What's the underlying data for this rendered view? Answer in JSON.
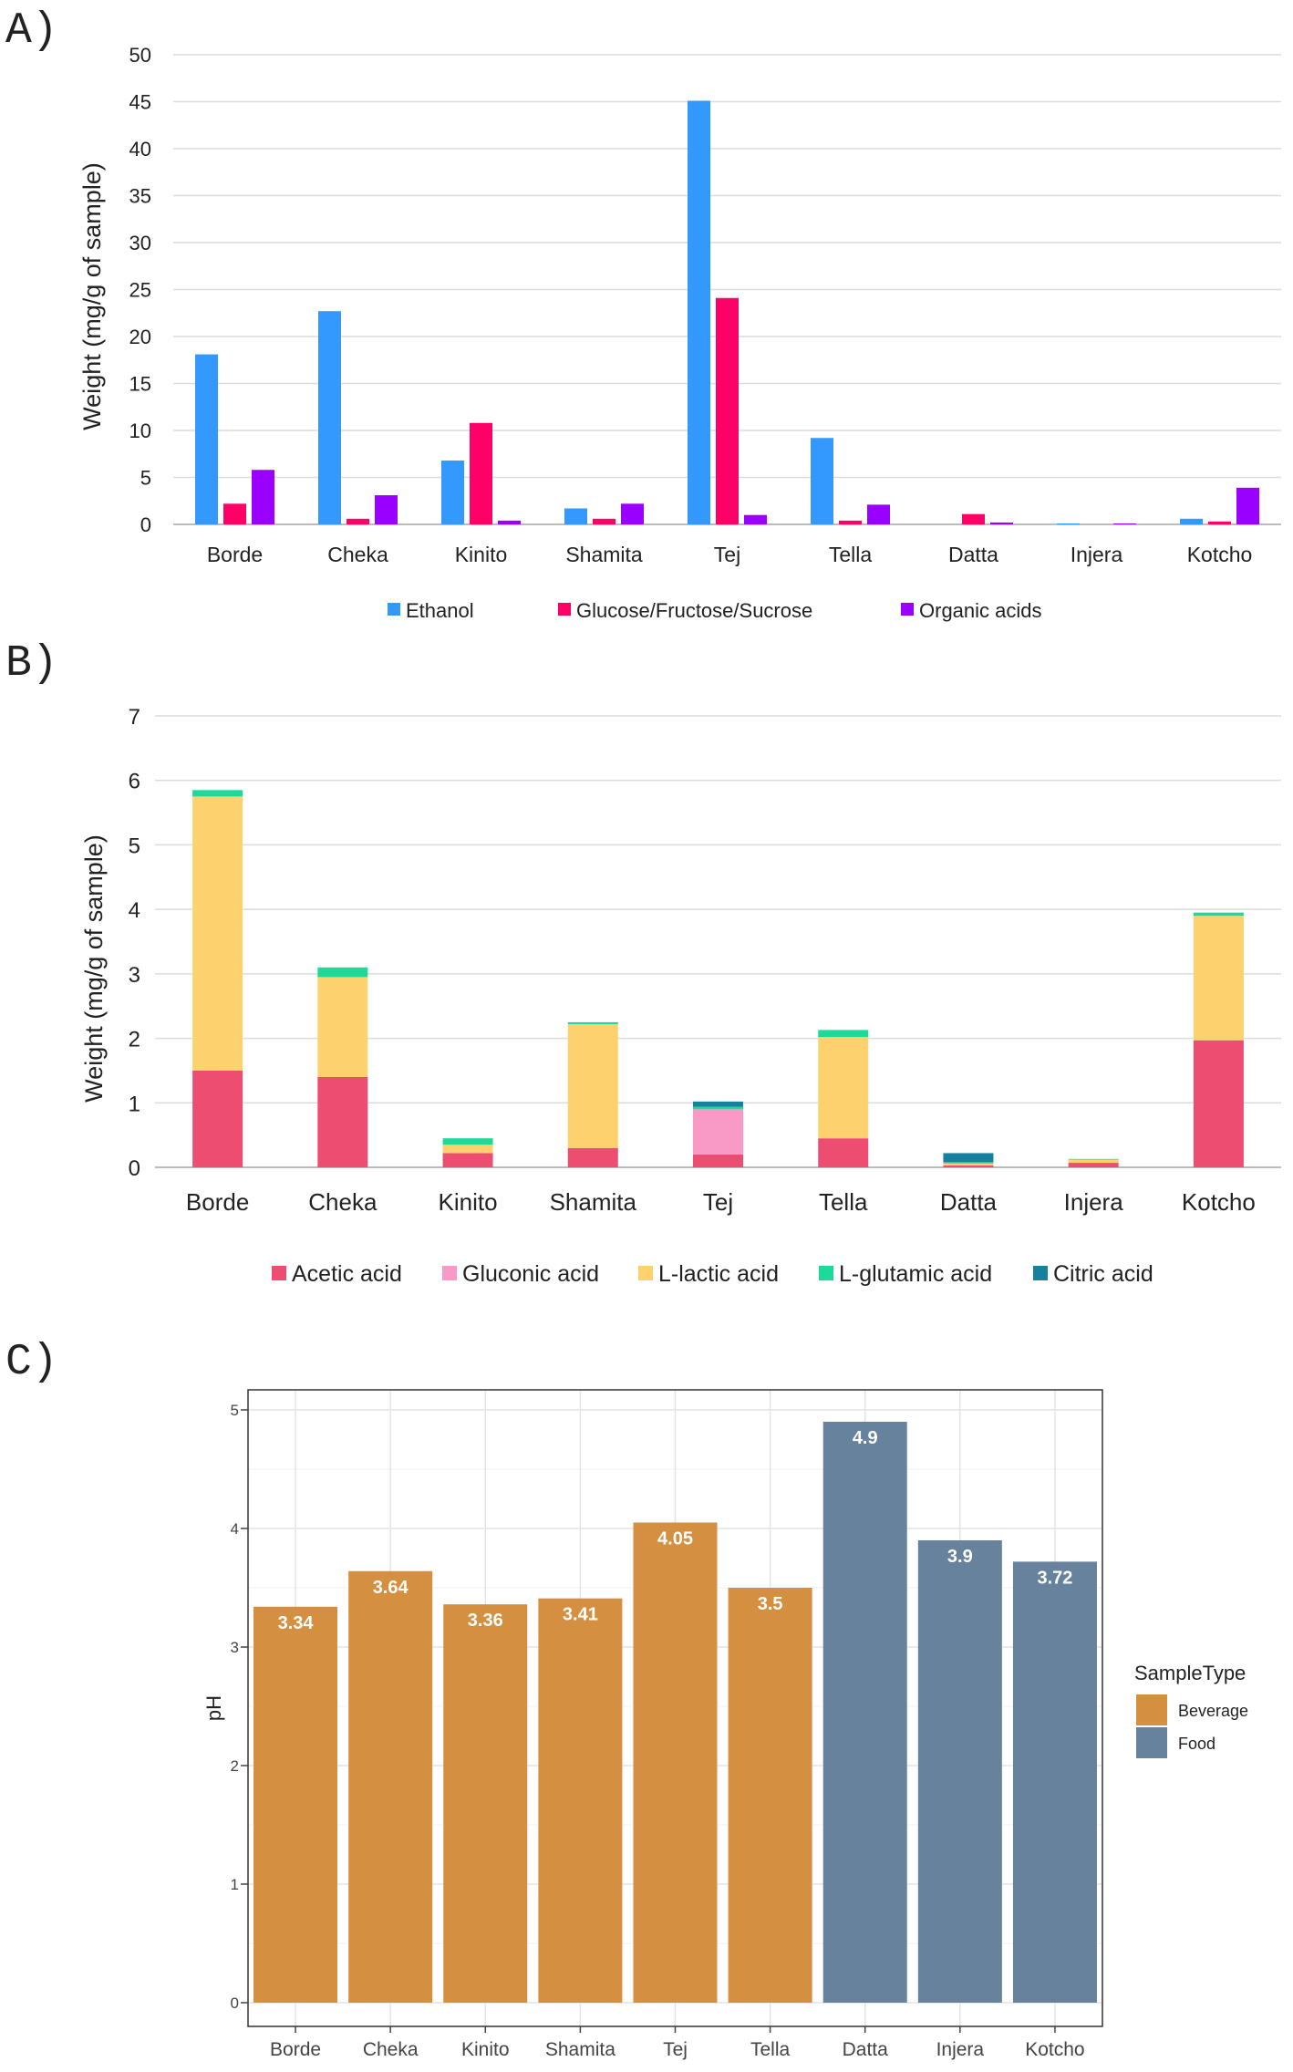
{
  "chart_data": [
    {
      "panel_label": "A)",
      "type": "bar",
      "grouped": true,
      "categories": [
        "Borde",
        "Cheka",
        "Kinito",
        "Shamita",
        "Tej",
        "Tella",
        "Datta",
        "Injera",
        "Kotcho"
      ],
      "ylabel": "Weight (mg/g of sample)",
      "xlabel": "",
      "ylim": [
        0,
        50
      ],
      "yticks": [
        0,
        5,
        10,
        15,
        20,
        25,
        30,
        35,
        40,
        45,
        50
      ],
      "grid": true,
      "legend_position": "bottom",
      "series": [
        {
          "name": "Ethanol",
          "color": "#3399ff",
          "values": [
            18.1,
            22.7,
            6.8,
            1.7,
            45.1,
            9.2,
            0.0,
            0.1,
            0.6
          ]
        },
        {
          "name": "Glucose/Fructose/Sucrose",
          "color": "#ff0066",
          "values": [
            2.2,
            0.6,
            10.8,
            0.6,
            24.1,
            0.4,
            1.1,
            0.0,
            0.3
          ]
        },
        {
          "name": "Organic acids",
          "color": "#9900ff",
          "values": [
            5.8,
            3.1,
            0.4,
            2.2,
            1.0,
            2.1,
            0.2,
            0.1,
            3.9
          ]
        }
      ]
    },
    {
      "panel_label": "B)",
      "type": "bar",
      "stacked": true,
      "categories": [
        "Borde",
        "Cheka",
        "Kinito",
        "Shamita",
        "Tej",
        "Tella",
        "Datta",
        "Injera",
        "Kotcho"
      ],
      "ylabel": "Weight (mg/g of sample)",
      "xlabel": "",
      "ylim": [
        0,
        7
      ],
      "yticks": [
        0,
        1,
        2,
        3,
        4,
        5,
        6,
        7
      ],
      "grid": true,
      "legend_position": "bottom",
      "series": [
        {
          "name": "Acetic acid",
          "color": "#ee4d72",
          "values": [
            1.5,
            1.4,
            0.22,
            0.3,
            0.2,
            0.45,
            0.03,
            0.07,
            1.97
          ]
        },
        {
          "name": "Gluconic acid",
          "color": "#f99ac6",
          "values": [
            0,
            0,
            0,
            0,
            0.7,
            0,
            0,
            0,
            0
          ]
        },
        {
          "name": "L-lactic acid",
          "color": "#fdd26e",
          "values": [
            4.25,
            1.55,
            0.13,
            1.92,
            0.0,
            1.57,
            0.03,
            0.05,
            1.93
          ]
        },
        {
          "name": "L-glutamic acid",
          "color": "#1dd99a",
          "values": [
            0.1,
            0.15,
            0.1,
            0.03,
            0.04,
            0.11,
            0.02,
            0.01,
            0.05
          ]
        },
        {
          "name": "Citric acid",
          "color": "#16809e",
          "values": [
            0,
            0,
            0,
            0,
            0.08,
            0,
            0.14,
            0,
            0
          ]
        }
      ]
    },
    {
      "panel_label": "C)",
      "type": "bar",
      "categories": [
        "Borde",
        "Cheka",
        "Kinito",
        "Shamita",
        "Tej",
        "Tella",
        "Datta",
        "Injera",
        "Kotcho"
      ],
      "values": [
        3.34,
        3.64,
        3.36,
        3.41,
        4.05,
        3.5,
        4.9,
        3.9,
        3.72
      ],
      "value_labels": [
        "3.34",
        "3.64",
        "3.36",
        "3.41",
        "4.05",
        "3.5",
        "4.9",
        "3.9",
        "3.72"
      ],
      "group": [
        "Beverage",
        "Beverage",
        "Beverage",
        "Beverage",
        "Beverage",
        "Beverage",
        "Food",
        "Food",
        "Food"
      ],
      "ylabel": "pH",
      "xlabel": "",
      "ylim": [
        0,
        5.2
      ],
      "yticks": [
        0,
        1,
        2,
        3,
        4,
        5
      ],
      "grid": true,
      "legend_title": "SampleType",
      "legend_position": "right",
      "legend": [
        {
          "name": "Beverage",
          "color": "#d48f40"
        },
        {
          "name": "Food",
          "color": "#67829c"
        }
      ]
    }
  ]
}
